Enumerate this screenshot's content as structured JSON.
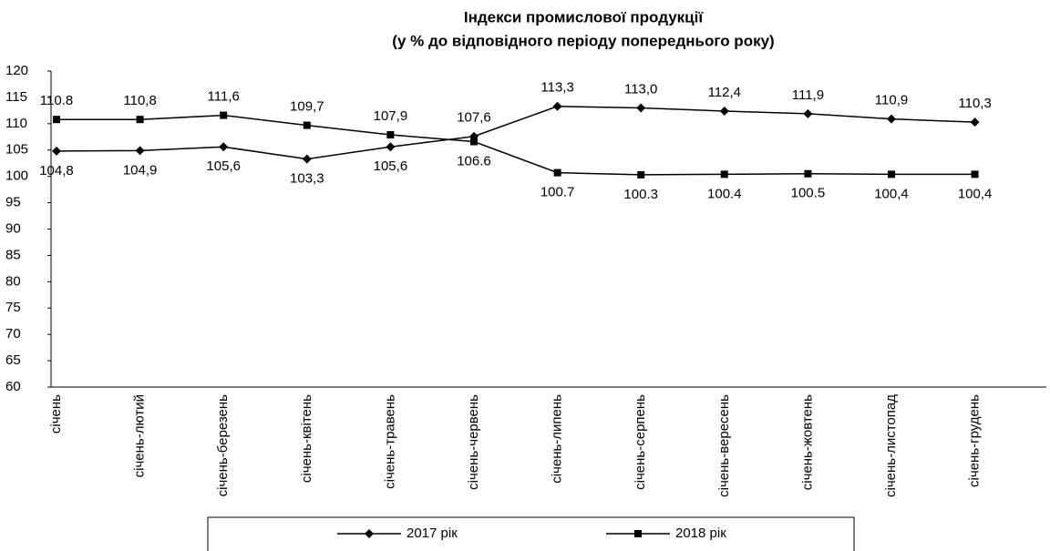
{
  "chart_data": {
    "type": "line",
    "title": "Індекси промислової продукції",
    "subtitle": "(у % до відповідного періоду попереднього року)",
    "categories": [
      "січень",
      "січень-лютий",
      "січень-березень",
      "січень-квітень",
      "січень-травень",
      "січень-червень",
      "січень-липень",
      "січень-серпень",
      "січень-вересень",
      "січень-жовтень",
      "січень-листопад",
      "січень-грудень"
    ],
    "series": [
      {
        "name": "2017 рік",
        "color": "#000000",
        "marker": "diamond",
        "values": [
          104.8,
          104.9,
          105.6,
          103.3,
          105.6,
          107.6,
          113.3,
          113.0,
          112.4,
          111.9,
          110.9,
          110.3
        ],
        "value_labels": [
          "104,8",
          "104,9",
          "105,6",
          "103,3",
          "105,6",
          "107,6",
          "113,3",
          "113,0",
          "112,4",
          "111,9",
          "110,9",
          "110,3"
        ]
      },
      {
        "name": "2018 рік",
        "color": "#000000",
        "marker": "square",
        "values": [
          110.8,
          110.8,
          111.6,
          109.7,
          107.9,
          106.6,
          100.7,
          100.3,
          100.4,
          100.5,
          100.4,
          100.4
        ],
        "value_labels": [
          "110.8",
          "110,8",
          "111,6",
          "109,7",
          "107,9",
          "106.6",
          "100.7",
          "100.3",
          "100.4",
          "100.5",
          "100,4",
          "100,4"
        ]
      }
    ],
    "ylim": [
      60,
      120
    ],
    "yticks": [
      60,
      65,
      70,
      75,
      80,
      85,
      90,
      95,
      100,
      105,
      110,
      115,
      120
    ],
    "grid": false,
    "legend": "bottom"
  }
}
